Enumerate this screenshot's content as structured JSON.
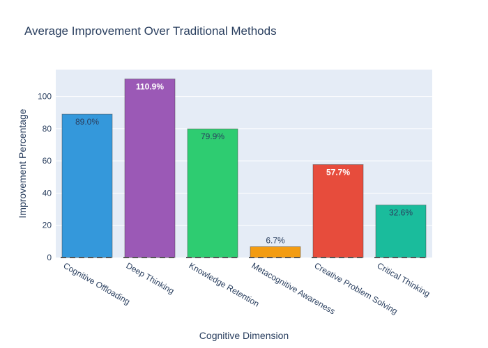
{
  "chart_data": {
    "type": "bar",
    "title": "Average Improvement Over Traditional Methods",
    "xlabel": "Cognitive Dimension",
    "ylabel": "Improvement Percentage",
    "categories": [
      "Cognitive Offloading",
      "Deep Thinking",
      "Knowledge Retention",
      "Metacognitive Awareness",
      "Creative Problem Solving",
      "Critical Thinking"
    ],
    "values": [
      89.0,
      110.9,
      79.9,
      6.7,
      57.7,
      32.6
    ],
    "labels": [
      "89.0%",
      "110.9%",
      "79.9%",
      "6.7%",
      "57.7%",
      "32.6%"
    ],
    "colors": [
      "#3498db",
      "#9b59b6",
      "#2ecc71",
      "#f39c12",
      "#e74c3c",
      "#1abc9c"
    ],
    "label_colors": [
      "#2a3f5f",
      "#ffffff",
      "#2a3f5f",
      "#2a3f5f",
      "#ffffff",
      "#2a3f5f"
    ],
    "label_position": [
      "inside",
      "inside",
      "inside",
      "outside",
      "inside",
      "inside"
    ],
    "yticks": [
      0,
      20,
      40,
      60,
      80,
      100
    ],
    "ylim": [
      0,
      116.7
    ],
    "grid": true,
    "plot_background": "#e5ecf6",
    "baseline_dash": true
  }
}
